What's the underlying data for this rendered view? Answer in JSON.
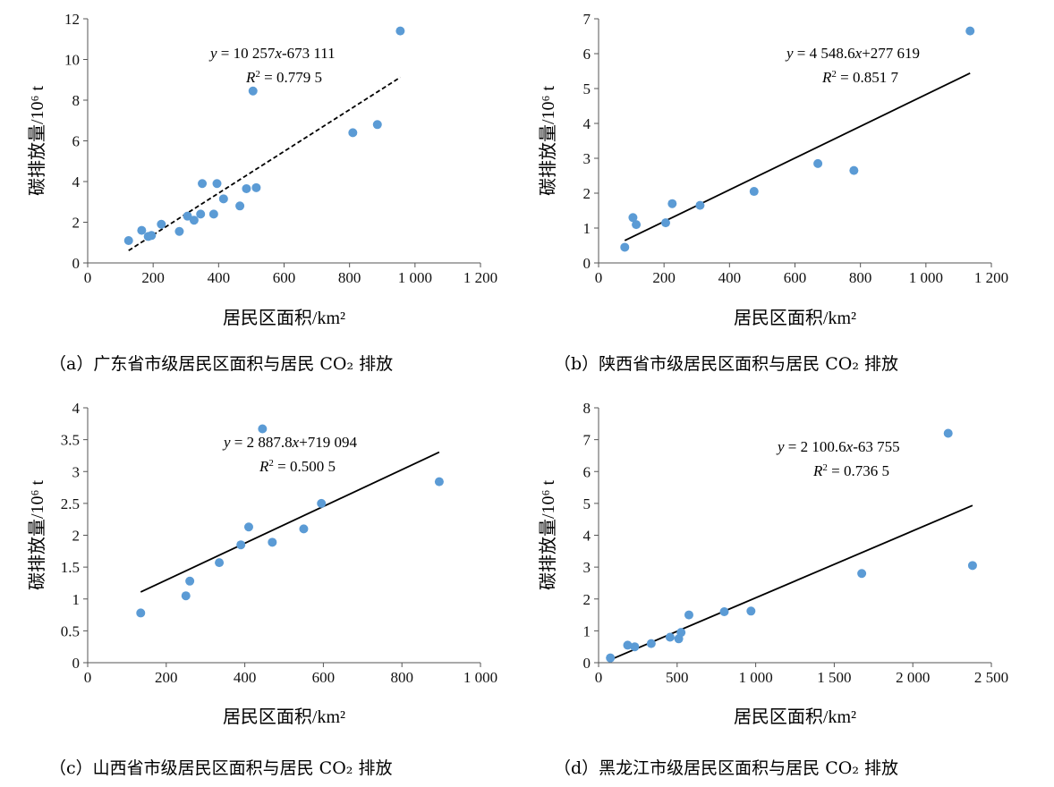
{
  "chart_data": [
    {
      "type": "scatter",
      "xlabel": "居民区面积/km²",
      "ylabel": "碳排放量/10⁶ t",
      "xlim": [
        0,
        1200
      ],
      "ylim": [
        0,
        12
      ],
      "xticks": [
        "0",
        "200",
        "400",
        "600",
        "800",
        "1 000",
        "1 200"
      ],
      "yticks": [
        "0",
        "2",
        "4",
        "6",
        "8",
        "10",
        "12"
      ],
      "points": [
        [
          125,
          1.1
        ],
        [
          165,
          1.6
        ],
        [
          185,
          1.3
        ],
        [
          195,
          1.35
        ],
        [
          225,
          1.9
        ],
        [
          280,
          1.55
        ],
        [
          305,
          2.3
        ],
        [
          325,
          2.1
        ],
        [
          345,
          2.4
        ],
        [
          350,
          3.9
        ],
        [
          385,
          2.4
        ],
        [
          395,
          3.9
        ],
        [
          415,
          3.15
        ],
        [
          465,
          2.8
        ],
        [
          485,
          3.65
        ],
        [
          505,
          8.45
        ],
        [
          515,
          3.7
        ],
        [
          810,
          6.4
        ],
        [
          885,
          6.8
        ],
        [
          955,
          11.4
        ]
      ],
      "trendline": {
        "slope": 10.257,
        "intercept": -0.673111,
        "x_range": [
          125,
          955
        ],
        "style": "dashed"
      },
      "equation": "y = 10 257x-673 111",
      "r2": "R² = 0.779 5",
      "caption": "（a）广东省市级居民区面积与居民 CO₂ 排放"
    },
    {
      "type": "scatter",
      "xlabel": "居民区面积/km²",
      "ylabel": "碳排放量/10⁶ t",
      "xlim": [
        0,
        1200
      ],
      "ylim": [
        0,
        7
      ],
      "xticks": [
        "0",
        "200",
        "400",
        "600",
        "800",
        "1 000",
        "1 200"
      ],
      "yticks": [
        "0",
        "1",
        "2",
        "3",
        "4",
        "5",
        "6",
        "7"
      ],
      "points": [
        [
          80,
          0.45
        ],
        [
          105,
          1.3
        ],
        [
          115,
          1.1
        ],
        [
          205,
          1.15
        ],
        [
          225,
          1.7
        ],
        [
          310,
          1.65
        ],
        [
          475,
          2.05
        ],
        [
          670,
          2.85
        ],
        [
          780,
          2.65
        ],
        [
          1135,
          6.65
        ]
      ],
      "trendline": {
        "slope": 4.5486,
        "intercept": 0.277619,
        "x_range": [
          80,
          1135
        ],
        "style": "solid"
      },
      "equation": "y = 4 548.6x+277 619",
      "r2": "R² = 0.851 7",
      "caption": "（b）陕西省市级居民区面积与居民 CO₂ 排放"
    },
    {
      "type": "scatter",
      "xlabel": "居民区面积/km²",
      "ylabel": "碳排放量/10⁶ t",
      "xlim": [
        0,
        1000
      ],
      "ylim": [
        0,
        4
      ],
      "xticks": [
        "0",
        "200",
        "400",
        "600",
        "800",
        "1 000"
      ],
      "yticks": [
        "0",
        "0.5",
        "1",
        "1.5",
        "2",
        "2.5",
        "3",
        "3.5",
        "4"
      ],
      "points": [
        [
          135,
          0.78
        ],
        [
          250,
          1.05
        ],
        [
          260,
          1.28
        ],
        [
          335,
          1.57
        ],
        [
          390,
          1.85
        ],
        [
          410,
          2.13
        ],
        [
          445,
          3.67
        ],
        [
          470,
          1.89
        ],
        [
          550,
          2.1
        ],
        [
          595,
          2.5
        ],
        [
          895,
          2.84
        ]
      ],
      "trendline": {
        "slope": 2.8878,
        "intercept": 0.719094,
        "x_range": [
          135,
          895
        ],
        "style": "solid"
      },
      "equation": "y = 2 887.8x+719 094",
      "r2": "R² = 0.500 5",
      "caption": "（c）山西省市级居民区面积与居民 CO₂ 排放"
    },
    {
      "type": "scatter",
      "xlabel": "居民区面积/km²",
      "ylabel": "碳排放量/10⁶ t",
      "xlim": [
        0,
        2500
      ],
      "ylim": [
        0,
        8
      ],
      "xticks": [
        "0",
        "500",
        "1 000",
        "1 500",
        "2 000",
        "2 500"
      ],
      "yticks": [
        "0",
        "1",
        "2",
        "3",
        "4",
        "5",
        "6",
        "7",
        "8"
      ],
      "points": [
        [
          75,
          0.15
        ],
        [
          185,
          0.55
        ],
        [
          230,
          0.5
        ],
        [
          335,
          0.6
        ],
        [
          455,
          0.8
        ],
        [
          510,
          0.75
        ],
        [
          525,
          0.95
        ],
        [
          575,
          1.5
        ],
        [
          800,
          1.6
        ],
        [
          970,
          1.62
        ],
        [
          1675,
          2.8
        ],
        [
          2225,
          7.2
        ],
        [
          2380,
          3.05
        ]
      ],
      "trendline": {
        "slope": 2.1006,
        "intercept": -0.063755,
        "x_range": [
          75,
          2380
        ],
        "style": "solid"
      },
      "equation": "y = 2 100.6x-63 755",
      "r2": "R² = 0.736 5",
      "caption": "（d）黑龙江市级居民区面积与居民 CO₂ 排放"
    }
  ]
}
